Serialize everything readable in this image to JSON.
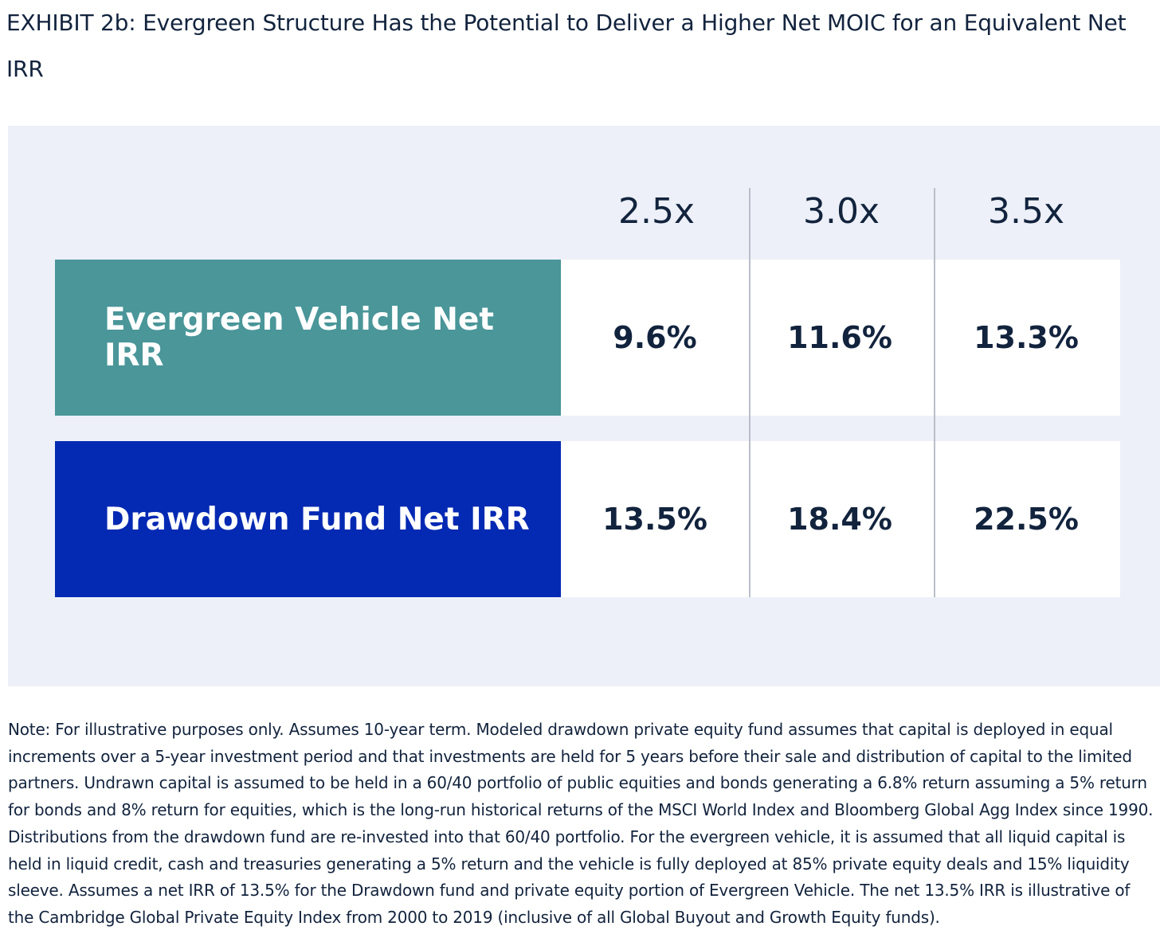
{
  "title": "EXHIBIT 2b: Evergreen Structure Has the Potential to Deliver a Higher Net MOIC for an Equivalent Net IRR",
  "colors": {
    "panel_bg": "#edf0f8",
    "evergreen": "#4a9699",
    "drawdown": "#0429b3",
    "text": "#12233d",
    "divider": "#b9bec9"
  },
  "chart_data": {
    "type": "table",
    "title": "EXHIBIT 2b: Evergreen Structure Has the Potential to Deliver a Higher Net MOIC for an Equivalent Net IRR",
    "columns": [
      "2.5x",
      "3.0x",
      "3.5x"
    ],
    "rows": [
      {
        "label": "Evergreen Vehicle Net IRR",
        "values": [
          "9.6%",
          "11.6%",
          "13.3%"
        ]
      },
      {
        "label": "Drawdown Fund Net IRR",
        "values": [
          "13.5%",
          "18.4%",
          "22.5%"
        ]
      }
    ]
  },
  "note": "Note: For illustrative purposes only. Assumes 10-year term. Modeled drawdown private equity fund assumes that capital is deployed in equal increments over a 5-year investment period and that investments are held for 5 years before their sale and distribution of capital to the limited partners. Undrawn capital is assumed to be held in a 60/40 portfolio of public equities and bonds generating a 6.8% return assuming a 5% return for bonds and 8% return for equities, which is the long-run historical returns of the MSCI World Index and Bloomberg Global Agg Index since 1990. Distributions from the drawdown fund are re-invested into that 60/40 portfolio. For the evergreen vehicle, it is assumed that all liquid capital is held in liquid credit, cash and treasuries generating a 5% return and the vehicle is fully deployed at 85% private equity deals and 15% liquidity sleeve. Assumes a net IRR of 13.5% for the Drawdown fund and private equity portion of Evergreen Vehicle. The net 13.5% IRR is illustrative of the Cambridge Global Private Equity Index from 2000 to 2019 (inclusive of all Global Buyout and Growth Equity funds)."
}
